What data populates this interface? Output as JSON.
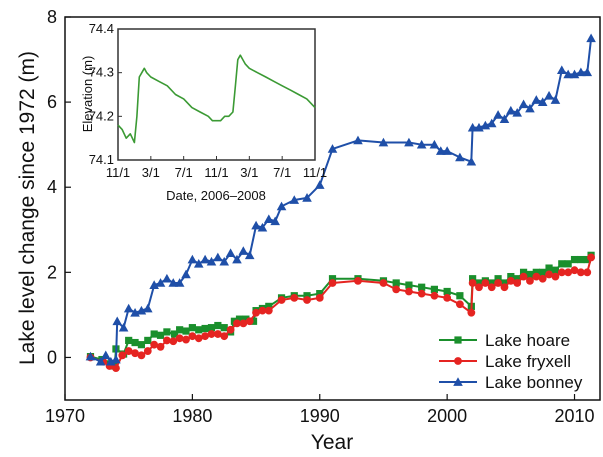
{
  "chart_data": [
    {
      "type": "line",
      "title": "",
      "xlabel": "Year",
      "ylabel": "Lake level change since 1972 (m)",
      "xlim": [
        1970,
        2012
      ],
      "ylim": [
        -1,
        8
      ],
      "x_ticks": [
        1970,
        1980,
        1990,
        2000,
        2010
      ],
      "x_tick_labels": [
        "1970",
        "1980",
        "1990",
        "2000",
        "2010"
      ],
      "y_ticks": [
        0,
        2,
        4,
        6,
        8
      ],
      "y_tick_labels": [
        "0",
        "2",
        "4",
        "6",
        "8"
      ],
      "legend_position": "bottom-right",
      "series": [
        {
          "name": "Lake hoare",
          "color": "#1a8f2c",
          "marker": "square",
          "x": [
            1972.0,
            1972.9,
            1973.5,
            1973.9,
            1974.0,
            1974.6,
            1975.0,
            1975.5,
            1976.0,
            1976.5,
            1977.0,
            1977.5,
            1978.0,
            1978.6,
            1979.0,
            1979.5,
            1980.0,
            1980.5,
            1981.0,
            1981.5,
            1982.0,
            1982.5,
            1983.0,
            1983.3,
            1983.7,
            1984.2,
            1984.8,
            1985.0,
            1985.5,
            1986.0,
            1987.0,
            1988.0,
            1989.0,
            1990.0,
            1991.0,
            1993.0,
            1995.0,
            1996.0,
            1997.0,
            1998.0,
            1999.0,
            2000.0,
            2001.0,
            2001.9,
            2002.0,
            2002.5,
            2003.0,
            2003.5,
            2004.0,
            2004.5,
            2005.0,
            2005.5,
            2006.0,
            2006.5,
            2007.0,
            2007.5,
            2008.0,
            2008.5,
            2009.0,
            2009.5,
            2010.0,
            2010.5,
            2011.0,
            2011.3
          ],
          "values": [
            0.02,
            -0.05,
            -0.15,
            -0.2,
            0.2,
            0.08,
            0.4,
            0.35,
            0.3,
            0.4,
            0.55,
            0.52,
            0.6,
            0.55,
            0.65,
            0.62,
            0.7,
            0.65,
            0.68,
            0.7,
            0.75,
            0.7,
            0.6,
            0.85,
            0.9,
            0.9,
            0.85,
            1.1,
            1.15,
            1.2,
            1.4,
            1.45,
            1.45,
            1.5,
            1.85,
            1.85,
            1.8,
            1.75,
            1.7,
            1.65,
            1.6,
            1.55,
            1.45,
            1.2,
            1.85,
            1.75,
            1.8,
            1.75,
            1.85,
            1.75,
            1.9,
            1.85,
            2.0,
            1.95,
            2.0,
            2.0,
            2.1,
            2.05,
            2.2,
            2.2,
            2.3,
            2.3,
            2.3,
            2.4
          ]
        },
        {
          "name": "Lake fryxell",
          "color": "#e52421",
          "marker": "circle",
          "x": [
            1972.0,
            1973.0,
            1973.5,
            1974.0,
            1974.5,
            1975.0,
            1975.5,
            1976.0,
            1976.5,
            1977.0,
            1977.5,
            1978.0,
            1978.5,
            1979.0,
            1979.5,
            1980.0,
            1980.5,
            1981.0,
            1981.5,
            1982.0,
            1982.5,
            1983.0,
            1983.5,
            1984.0,
            1984.5,
            1985.0,
            1985.5,
            1986.0,
            1987.0,
            1988.0,
            1989.0,
            1990.0,
            1991.0,
            1993.0,
            1995.0,
            1996.0,
            1997.0,
            1998.0,
            1999.0,
            2000.0,
            2001.0,
            2001.9,
            2002.0,
            2002.5,
            2003.0,
            2003.5,
            2004.0,
            2004.5,
            2005.0,
            2005.5,
            2006.0,
            2006.5,
            2007.0,
            2007.5,
            2008.0,
            2008.5,
            2009.0,
            2009.5,
            2010.0,
            2010.5,
            2011.0,
            2011.3
          ],
          "values": [
            0.0,
            -0.1,
            -0.2,
            -0.25,
            0.05,
            0.15,
            0.1,
            0.05,
            0.15,
            0.3,
            0.25,
            0.4,
            0.38,
            0.45,
            0.42,
            0.5,
            0.45,
            0.5,
            0.55,
            0.55,
            0.5,
            0.65,
            0.8,
            0.8,
            0.85,
            1.05,
            1.1,
            1.1,
            1.35,
            1.4,
            1.35,
            1.4,
            1.75,
            1.8,
            1.75,
            1.6,
            1.55,
            1.5,
            1.45,
            1.4,
            1.25,
            1.05,
            1.75,
            1.65,
            1.75,
            1.65,
            1.75,
            1.65,
            1.8,
            1.75,
            1.9,
            1.8,
            1.9,
            1.85,
            1.95,
            1.9,
            2.0,
            2.0,
            2.05,
            2.0,
            2.0,
            2.35
          ]
        },
        {
          "name": "Lake bonney",
          "color": "#1f4fa8",
          "marker": "triangle",
          "x": [
            1972.0,
            1972.8,
            1973.2,
            1973.6,
            1974.0,
            1974.1,
            1974.6,
            1975.0,
            1975.5,
            1976.0,
            1976.5,
            1977.0,
            1977.5,
            1978.0,
            1978.5,
            1979.0,
            1979.5,
            1980.0,
            1980.5,
            1981.0,
            1981.5,
            1982.0,
            1982.5,
            1983.0,
            1983.5,
            1984.0,
            1984.5,
            1985.0,
            1985.5,
            1986.0,
            1986.5,
            1987.0,
            1988.0,
            1989.0,
            1990.0,
            1991.0,
            1993.0,
            1995.0,
            1997.0,
            1998.0,
            1999.0,
            1999.5,
            2000.0,
            2001.0,
            2001.9,
            2002.0,
            2002.5,
            2003.0,
            2003.5,
            2004.0,
            2004.5,
            2005.0,
            2005.5,
            2006.0,
            2006.5,
            2007.0,
            2007.5,
            2008.0,
            2008.5,
            2009.0,
            2009.5,
            2010.0,
            2010.5,
            2011.0,
            2011.3
          ],
          "values": [
            0.02,
            -0.1,
            0.05,
            -0.1,
            -0.05,
            0.85,
            0.7,
            1.15,
            1.05,
            1.1,
            1.15,
            1.7,
            1.75,
            1.85,
            1.75,
            1.75,
            1.95,
            2.3,
            2.2,
            2.3,
            2.25,
            2.35,
            2.25,
            2.45,
            2.3,
            2.5,
            2.4,
            3.1,
            3.05,
            3.25,
            3.2,
            3.55,
            3.7,
            3.75,
            4.05,
            4.9,
            5.1,
            5.05,
            5.05,
            5.0,
            5.0,
            4.85,
            4.85,
            4.7,
            4.6,
            5.4,
            5.4,
            5.45,
            5.5,
            5.7,
            5.6,
            5.8,
            5.75,
            5.95,
            5.85,
            6.05,
            6.0,
            6.15,
            6.05,
            6.75,
            6.65,
            6.65,
            6.7,
            6.7,
            7.5
          ]
        }
      ]
    },
    {
      "type": "line",
      "title": "",
      "xlabel": "Date, 2006–2008",
      "ylabel": "Elevation (m)",
      "xlim": [
        0,
        24
      ],
      "ylim": [
        74.1,
        74.4
      ],
      "x_ticks": [
        0,
        4,
        8,
        12,
        16,
        20,
        24
      ],
      "x_tick_labels": [
        "11/1",
        "3/1",
        "7/1",
        "11/1",
        "3/1",
        "7/1",
        "11/1"
      ],
      "y_ticks": [
        74.1,
        74.2,
        74.3,
        74.4
      ],
      "y_tick_labels": [
        "74.1",
        "74.2",
        "74.3",
        "74.4"
      ],
      "series": [
        {
          "color": "#3b9a34",
          "x": [
            0,
            0.5,
            1.0,
            1.5,
            2.0,
            2.3,
            2.6,
            2.9,
            3.2,
            3.5,
            4.0,
            5.0,
            6.0,
            7.0,
            8.0,
            9.0,
            10.0,
            11.0,
            11.5,
            12.0,
            12.5,
            13.0,
            13.5,
            14.0,
            14.3,
            14.6,
            14.9,
            15.2,
            15.5,
            16.0,
            17.0,
            18.0,
            19.0,
            20.0,
            21.0,
            22.0,
            23.0,
            24.0
          ],
          "values": [
            74.18,
            74.17,
            74.15,
            74.16,
            74.14,
            74.2,
            74.29,
            74.3,
            74.31,
            74.3,
            74.29,
            74.28,
            74.27,
            74.25,
            74.24,
            74.22,
            74.21,
            74.2,
            74.19,
            74.19,
            74.19,
            74.2,
            74.2,
            74.21,
            74.27,
            74.33,
            74.34,
            74.33,
            74.32,
            74.31,
            74.3,
            74.29,
            74.28,
            74.27,
            74.26,
            74.25,
            74.24,
            74.22
          ]
        }
      ]
    }
  ]
}
